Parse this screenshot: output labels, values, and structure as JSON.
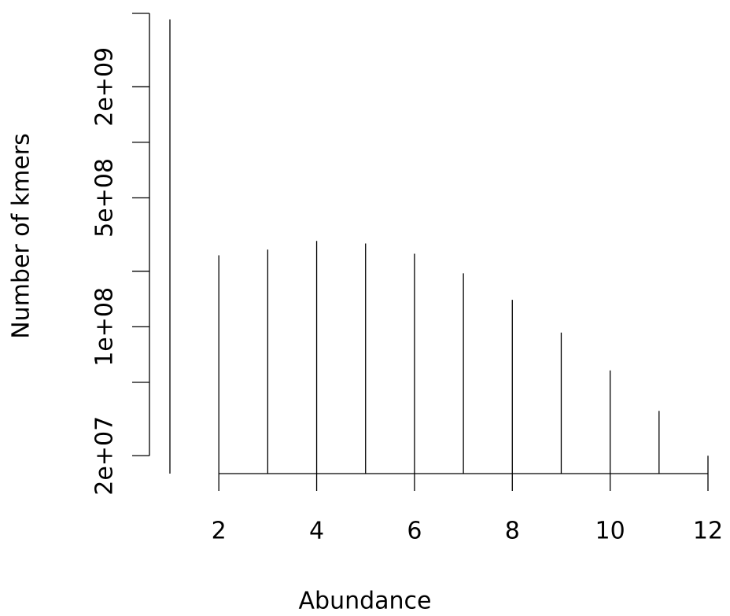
{
  "chart_data": {
    "type": "spike",
    "x_label": "Abundance",
    "y_label": "Number of kmers",
    "x": [
      1,
      2,
      3,
      4,
      5,
      6,
      7,
      8,
      9,
      10,
      11,
      12
    ],
    "values": [
      4640000000,
      244000000,
      262000000,
      292000000,
      283000000,
      249000000,
      195000000,
      140000000,
      93000000,
      58000000,
      35000000,
      20000000
    ],
    "color": "#000000",
    "xlim": [
      1,
      12
    ],
    "xticks": [
      2,
      4,
      6,
      8,
      10,
      12
    ],
    "ylim": [
      16000000,
      5000000000
    ],
    "log_y": true,
    "yticks": [
      {
        "value": 20000000,
        "label": "2e+07"
      },
      {
        "value": 50000000,
        "label": null
      },
      {
        "value": 100000000,
        "label": "1e+08"
      },
      {
        "value": 200000000,
        "label": null
      },
      {
        "value": 500000000,
        "label": "5e+08"
      },
      {
        "value": 1000000000,
        "label": null
      },
      {
        "value": 2000000000,
        "label": "2e+09"
      },
      {
        "value": 5000000000,
        "label": null
      }
    ]
  }
}
